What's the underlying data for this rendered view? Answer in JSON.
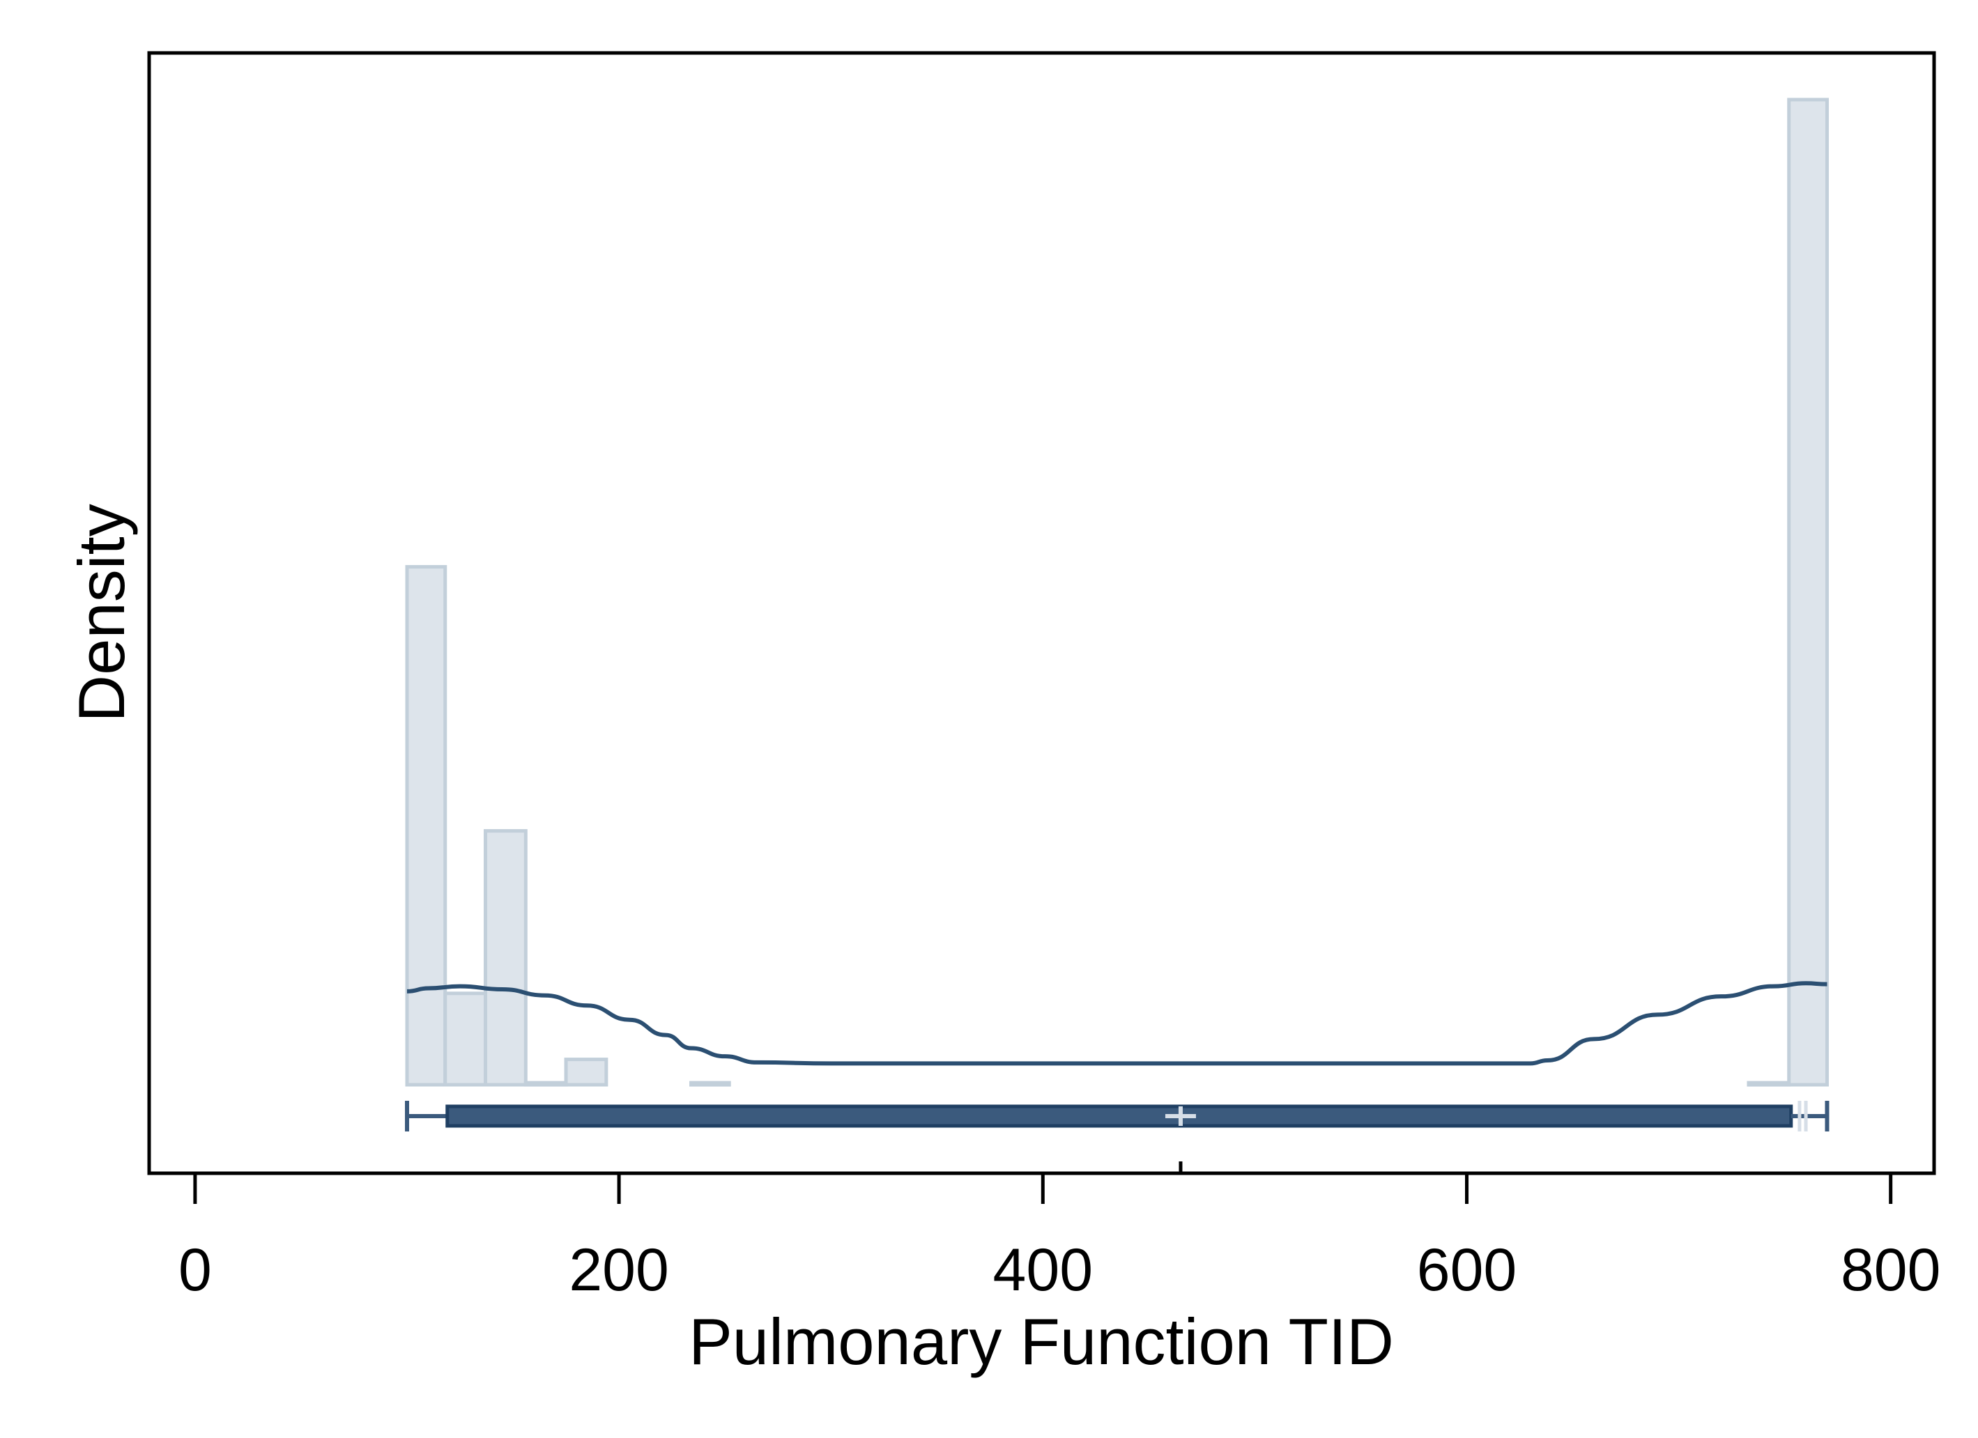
{
  "chart_data": {
    "type": "histogram",
    "title": "",
    "xlabel": "Pulmonary Function TID",
    "ylabel": "Density",
    "xlim": [
      -20,
      822
    ],
    "ylim": [
      0,
      1.08
    ],
    "x_ticks": [
      0,
      200,
      400,
      600,
      800
    ],
    "x_tick_labels": [
      "0",
      "200",
      "400",
      "600",
      "800"
    ],
    "y_ticks": [],
    "grid": false,
    "legend": "none",
    "y_values_note": "",
    "histogram": {
      "bin_width": 18,
      "bins": [
        {
          "x0": 100,
          "x1": 118,
          "density": 0.51
        },
        {
          "x0": 118,
          "x1": 137,
          "density": 0.09
        },
        {
          "x0": 137,
          "x1": 156,
          "density": 0.25
        },
        {
          "x0": 156,
          "x1": 175,
          "density": 0.002
        },
        {
          "x0": 175,
          "x1": 194,
          "density": 0.025
        },
        {
          "x0": 234,
          "x1": 252,
          "density": 0.002
        },
        {
          "x0": 733,
          "x1": 752,
          "density": 0.002
        },
        {
          "x0": 752,
          "x1": 770,
          "density": 0.97
        }
      ],
      "fill_color": "#dde4eb",
      "stroke_color": "#c2cfda"
    },
    "density_curve": {
      "color": "#2b4f72",
      "points": [
        [
          100,
          0.092
        ],
        [
          110,
          0.095
        ],
        [
          125,
          0.097
        ],
        [
          145,
          0.094
        ],
        [
          165,
          0.088
        ],
        [
          185,
          0.078
        ],
        [
          205,
          0.064
        ],
        [
          222,
          0.049
        ],
        [
          234,
          0.036
        ],
        [
          250,
          0.028
        ],
        [
          265,
          0.022
        ],
        [
          300,
          0.021
        ],
        [
          400,
          0.021
        ],
        [
          500,
          0.021
        ],
        [
          600,
          0.021
        ],
        [
          630,
          0.021
        ],
        [
          638,
          0.024
        ],
        [
          660,
          0.045
        ],
        [
          690,
          0.069
        ],
        [
          720,
          0.087
        ],
        [
          745,
          0.097
        ],
        [
          760,
          0.1
        ],
        [
          770,
          0.099
        ]
      ]
    },
    "boxplot": {
      "color": "#3b5a7d",
      "whisker_low": 100,
      "q1": 119,
      "median": 465,
      "mean": 465,
      "q3": 753,
      "whisker_high": 770,
      "cap_marks": [
        757,
        760
      ]
    }
  }
}
